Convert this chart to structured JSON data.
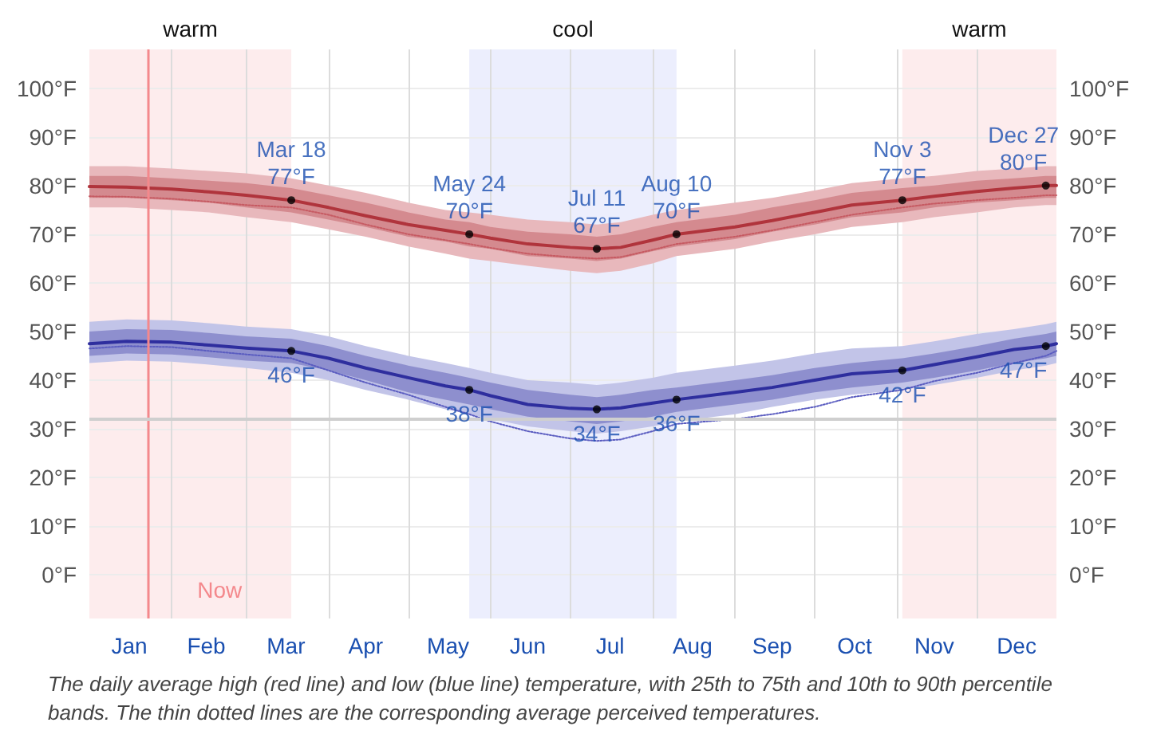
{
  "chart_data": {
    "type": "line",
    "x": [
      "--01-01",
      "--01-15",
      "--02-01",
      "--02-15",
      "--03-01",
      "--03-18",
      "--04-01",
      "--04-15",
      "--05-01",
      "--05-15",
      "--05-24",
      "--06-01",
      "--06-15",
      "--07-01",
      "--07-11",
      "--07-20",
      "--08-01",
      "--08-10",
      "--09-01",
      "--09-15",
      "--10-01",
      "--10-15",
      "--11-03",
      "--11-15",
      "--12-01",
      "--12-15",
      "--12-27",
      "--12-31"
    ],
    "series": [
      {
        "color": "#e8b8bc",
        "values": [
          null,
          null,
          null,
          null,
          null,
          null,
          null,
          null,
          null,
          null,
          null,
          null,
          null,
          null,
          null,
          null,
          null,
          null,
          null,
          null,
          null,
          null,
          null,
          null,
          null,
          null,
          null,
          null
        ],
        "lower": [
          75.5,
          75.5,
          75,
          74.5,
          73.5,
          72.5,
          71,
          69.5,
          67.5,
          66,
          65,
          64.5,
          63.5,
          62.5,
          62,
          62.5,
          64,
          65.5,
          67,
          68.5,
          70,
          71.5,
          72.5,
          73.5,
          74.5,
          75.5,
          76,
          76
        ],
        "upper": [
          84,
          84,
          83.5,
          83,
          82.5,
          81.5,
          80,
          78.5,
          76.5,
          75,
          74.5,
          74,
          73,
          72.5,
          72,
          72.5,
          74,
          75,
          76.5,
          77.5,
          79,
          80.5,
          81.5,
          82,
          83,
          83.5,
          84,
          84
        ]
      },
      {
        "color": "#b0343c",
        "values": [
          79.8,
          79.7,
          79.3,
          78.7,
          78,
          77,
          75.5,
          73.8,
          72,
          70.8,
          70,
          69.2,
          68,
          67.3,
          67,
          67.3,
          68.8,
          70,
          71.5,
          72.8,
          74.5,
          76,
          77,
          77.8,
          78.8,
          79.5,
          80,
          80
        ],
        "lower": [
          77.5,
          77.5,
          77,
          76.5,
          75.5,
          74.5,
          73,
          71.5,
          69.5,
          68.5,
          67.5,
          67,
          65.5,
          65,
          64.5,
          65,
          66.5,
          67.5,
          69,
          70.5,
          72,
          73.5,
          74.5,
          75.5,
          76.5,
          77,
          77.5,
          77.5
        ],
        "upper": [
          82,
          82,
          81.5,
          81,
          80.5,
          79.5,
          78,
          76.5,
          74.5,
          73,
          72.5,
          71.5,
          70.5,
          70,
          69.5,
          70,
          71.5,
          72.5,
          74,
          75.5,
          77,
          78.5,
          79.5,
          80,
          81,
          81.5,
          82,
          82
        ]
      },
      {
        "color": "#c65a62",
        "line_style": "dotted",
        "values": [
          77.8,
          77.7,
          77.3,
          76.7,
          76,
          75.5,
          74,
          72,
          70,
          68.8,
          68,
          67.2,
          66,
          65.3,
          65,
          65.3,
          66.8,
          68,
          69.5,
          70.8,
          72.5,
          74,
          75.5,
          76.3,
          77,
          77.5,
          78,
          78
        ]
      },
      {
        "color": "#c2c4e8",
        "values": [
          null,
          null,
          null,
          null,
          null,
          null,
          null,
          null,
          null,
          null,
          null,
          null,
          null,
          null,
          null,
          null,
          null,
          null,
          null,
          null,
          null,
          null,
          null,
          null,
          null,
          null,
          null,
          null
        ],
        "lower": [
          43.5,
          44,
          43.8,
          43.2,
          42.5,
          41.5,
          40,
          38,
          36,
          34,
          33,
          32,
          30.5,
          29.5,
          29,
          29.5,
          30.5,
          31.5,
          33,
          34.5,
          36,
          37,
          38,
          39,
          40.5,
          42,
          43,
          43.5
        ],
        "upper": [
          52,
          52.5,
          52.3,
          51.7,
          51,
          50.5,
          49,
          47,
          45,
          43.5,
          42.5,
          41.5,
          40,
          39.5,
          39,
          39.5,
          40.5,
          41.5,
          43,
          44,
          45.5,
          46.5,
          47,
          48,
          49.5,
          50.5,
          51.5,
          52
        ]
      },
      {
        "color": "#2e2e9e",
        "values": [
          47.5,
          48,
          47.8,
          47.2,
          46.6,
          46,
          44.5,
          42.5,
          40.5,
          38.8,
          38,
          36.8,
          35,
          34.2,
          34,
          34.3,
          35.3,
          36,
          37.5,
          38.5,
          40,
          41.3,
          42,
          43.2,
          44.8,
          46.3,
          47,
          47.5
        ],
        "lower": [
          45,
          45.5,
          45.3,
          44.7,
          44,
          43.5,
          42,
          40,
          37.5,
          36,
          35,
          34,
          32.5,
          31.5,
          31,
          31.5,
          32.5,
          33.5,
          35,
          36,
          37.5,
          38.5,
          39.5,
          40.5,
          42,
          43.5,
          44.5,
          45
        ],
        "upper": [
          50,
          50.5,
          50.3,
          49.7,
          49,
          48.5,
          47,
          45,
          43,
          41.5,
          40.5,
          39.5,
          38,
          37,
          36.5,
          37,
          38,
          38.5,
          40,
          41,
          42.5,
          43.5,
          44.5,
          45.5,
          47,
          48.5,
          49.5,
          50
        ]
      },
      {
        "color": "#5a5cc0",
        "line_style": "dotted",
        "values": [
          46.5,
          47,
          46.8,
          46,
          45.3,
          44.5,
          42,
          39.5,
          37,
          34.5,
          33,
          31.5,
          29.5,
          28,
          27.5,
          27.8,
          29.5,
          31,
          32,
          33,
          34.5,
          36.5,
          38,
          39.8,
          41.5,
          43.5,
          45,
          46
        ]
      }
    ],
    "marker": "none",
    "grid": true,
    "xlim": [
      "--01-01",
      "--12-31"
    ],
    "xticks": [
      {
        "value": "--01-16",
        "label": "Jan"
      },
      {
        "value": "--02-01",
        "label": null
      },
      {
        "value": "--02-14",
        "label": "Feb"
      },
      {
        "value": "--03-01",
        "label": null
      },
      {
        "value": "--03-16",
        "label": "Mar"
      },
      {
        "value": "--04-01",
        "label": null
      },
      {
        "value": "--04-15",
        "label": "Apr"
      },
      {
        "value": "--05-01",
        "label": null
      },
      {
        "value": "--05-16",
        "label": "May"
      },
      {
        "value": "--06-01",
        "label": null
      },
      {
        "value": "--06-15",
        "label": "Jun"
      },
      {
        "value": "--07-01",
        "label": null
      },
      {
        "value": "--07-16",
        "label": "Jul"
      },
      {
        "value": "--08-01",
        "label": null
      },
      {
        "value": "--08-16",
        "label": "Aug"
      },
      {
        "value": "--09-01",
        "label": null
      },
      {
        "value": "--09-15",
        "label": "Sep"
      },
      {
        "value": "--10-01",
        "label": null
      },
      {
        "value": "--10-16",
        "label": "Oct"
      },
      {
        "value": "--11-01",
        "label": null
      },
      {
        "value": "--11-15",
        "label": "Nov"
      },
      {
        "value": "--12-01",
        "label": null
      },
      {
        "value": "--12-16",
        "label": "Dec"
      }
    ],
    "ylim": [
      -9,
      108
    ],
    "yticks": [
      {
        "value": 0,
        "label": "0°F"
      },
      {
        "value": 10,
        "label": "10°F"
      },
      {
        "value": 20,
        "label": "20°F"
      },
      {
        "value": 30,
        "label": "30°F"
      },
      {
        "value": 40,
        "label": "40°F"
      },
      {
        "value": 50,
        "label": "50°F"
      },
      {
        "value": 60,
        "label": "60°F"
      },
      {
        "value": 70,
        "label": "70°F"
      },
      {
        "value": 80,
        "label": "80°F"
      },
      {
        "value": 90,
        "label": "90°F"
      },
      {
        "value": 100,
        "label": "100°F"
      }
    ],
    "y2lim": [
      -9,
      108
    ],
    "y2ticks": [
      {
        "value": 0,
        "label": "0°F"
      },
      {
        "value": 10,
        "label": "10°F"
      },
      {
        "value": 20,
        "label": "20°F"
      },
      {
        "value": 30,
        "label": "30°F"
      },
      {
        "value": 40,
        "label": "40°F"
      },
      {
        "value": 50,
        "label": "50°F"
      },
      {
        "value": 60,
        "label": "60°F"
      },
      {
        "value": 70,
        "label": "70°F"
      },
      {
        "value": 80,
        "label": "80°F"
      },
      {
        "value": 90,
        "label": "90°F"
      },
      {
        "value": 100,
        "label": "100°F"
      }
    ],
    "bands": [
      {
        "axis": "x",
        "from": "--01-01",
        "to": "--03-18",
        "label": "warm",
        "color": "#fdeced"
      },
      {
        "axis": "x",
        "from": "--05-24",
        "to": "--08-10",
        "label": "cool",
        "color": "#eceefd"
      },
      {
        "axis": "x",
        "from": "--11-03",
        "to": "--12-31",
        "label": "warm",
        "color": "#fdeced"
      }
    ],
    "ref_lines": [
      {
        "axis": "x",
        "value": "--01-23",
        "label": "Now",
        "color": "#f4888c"
      },
      {
        "axis": "y",
        "value": 32,
        "color": "#cfcfcf"
      }
    ],
    "annotations": [
      {
        "text": "Mar 18\n77°F",
        "x": "--03-18",
        "y": 77
      },
      {
        "text": "May 24\n70°F",
        "x": "--05-24",
        "y": 70
      },
      {
        "text": "Jul 11\n67°F",
        "x": "--07-11",
        "y": 67
      },
      {
        "text": "Aug 10\n70°F",
        "x": "--08-10",
        "y": 70
      },
      {
        "text": "Nov 3\n77°F",
        "x": "--11-03",
        "y": 77
      },
      {
        "text": "Dec 27\n80°F",
        "x": "--12-27",
        "y": 80
      },
      {
        "text": "46°F",
        "x": "--03-18",
        "y": 46
      },
      {
        "text": "38°F",
        "x": "--05-24",
        "y": 38
      },
      {
        "text": "34°F",
        "x": "--07-11",
        "y": 34
      },
      {
        "text": "36°F",
        "x": "--08-10",
        "y": 36
      },
      {
        "text": "42°F",
        "x": "--11-03",
        "y": 42
      },
      {
        "text": "47°F",
        "x": "--12-27",
        "y": 47
      },
      "The daily average high (red line) and low (blue line) temperature, with 25th to 75th and 10th to 90th percentile bands. The thin dotted lines are the corresponding average perceived temperatures."
    ]
  }
}
